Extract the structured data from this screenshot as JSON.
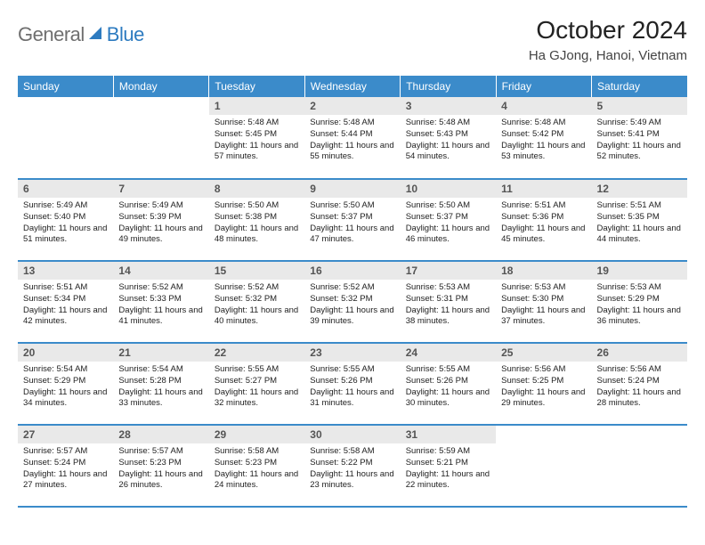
{
  "brand": {
    "part1": "General",
    "part2": "Blue"
  },
  "title": "October 2024",
  "location": "Ha GJong, Hanoi, Vietnam",
  "colors": {
    "header_bg": "#3b8bca",
    "header_fg": "#ffffff",
    "daynum_bg": "#e9e9e9",
    "row_border": "#3b8bca",
    "logo_gray": "#6f6f6f",
    "logo_blue": "#2d7bc0"
  },
  "dayNames": [
    "Sunday",
    "Monday",
    "Tuesday",
    "Wednesday",
    "Thursday",
    "Friday",
    "Saturday"
  ],
  "weeks": [
    [
      null,
      null,
      {
        "n": "1",
        "sr": "5:48 AM",
        "ss": "5:45 PM",
        "dl": "11 hours and 57 minutes."
      },
      {
        "n": "2",
        "sr": "5:48 AM",
        "ss": "5:44 PM",
        "dl": "11 hours and 55 minutes."
      },
      {
        "n": "3",
        "sr": "5:48 AM",
        "ss": "5:43 PM",
        "dl": "11 hours and 54 minutes."
      },
      {
        "n": "4",
        "sr": "5:48 AM",
        "ss": "5:42 PM",
        "dl": "11 hours and 53 minutes."
      },
      {
        "n": "5",
        "sr": "5:49 AM",
        "ss": "5:41 PM",
        "dl": "11 hours and 52 minutes."
      }
    ],
    [
      {
        "n": "6",
        "sr": "5:49 AM",
        "ss": "5:40 PM",
        "dl": "11 hours and 51 minutes."
      },
      {
        "n": "7",
        "sr": "5:49 AM",
        "ss": "5:39 PM",
        "dl": "11 hours and 49 minutes."
      },
      {
        "n": "8",
        "sr": "5:50 AM",
        "ss": "5:38 PM",
        "dl": "11 hours and 48 minutes."
      },
      {
        "n": "9",
        "sr": "5:50 AM",
        "ss": "5:37 PM",
        "dl": "11 hours and 47 minutes."
      },
      {
        "n": "10",
        "sr": "5:50 AM",
        "ss": "5:37 PM",
        "dl": "11 hours and 46 minutes."
      },
      {
        "n": "11",
        "sr": "5:51 AM",
        "ss": "5:36 PM",
        "dl": "11 hours and 45 minutes."
      },
      {
        "n": "12",
        "sr": "5:51 AM",
        "ss": "5:35 PM",
        "dl": "11 hours and 44 minutes."
      }
    ],
    [
      {
        "n": "13",
        "sr": "5:51 AM",
        "ss": "5:34 PM",
        "dl": "11 hours and 42 minutes."
      },
      {
        "n": "14",
        "sr": "5:52 AM",
        "ss": "5:33 PM",
        "dl": "11 hours and 41 minutes."
      },
      {
        "n": "15",
        "sr": "5:52 AM",
        "ss": "5:32 PM",
        "dl": "11 hours and 40 minutes."
      },
      {
        "n": "16",
        "sr": "5:52 AM",
        "ss": "5:32 PM",
        "dl": "11 hours and 39 minutes."
      },
      {
        "n": "17",
        "sr": "5:53 AM",
        "ss": "5:31 PM",
        "dl": "11 hours and 38 minutes."
      },
      {
        "n": "18",
        "sr": "5:53 AM",
        "ss": "5:30 PM",
        "dl": "11 hours and 37 minutes."
      },
      {
        "n": "19",
        "sr": "5:53 AM",
        "ss": "5:29 PM",
        "dl": "11 hours and 36 minutes."
      }
    ],
    [
      {
        "n": "20",
        "sr": "5:54 AM",
        "ss": "5:29 PM",
        "dl": "11 hours and 34 minutes."
      },
      {
        "n": "21",
        "sr": "5:54 AM",
        "ss": "5:28 PM",
        "dl": "11 hours and 33 minutes."
      },
      {
        "n": "22",
        "sr": "5:55 AM",
        "ss": "5:27 PM",
        "dl": "11 hours and 32 minutes."
      },
      {
        "n": "23",
        "sr": "5:55 AM",
        "ss": "5:26 PM",
        "dl": "11 hours and 31 minutes."
      },
      {
        "n": "24",
        "sr": "5:55 AM",
        "ss": "5:26 PM",
        "dl": "11 hours and 30 minutes."
      },
      {
        "n": "25",
        "sr": "5:56 AM",
        "ss": "5:25 PM",
        "dl": "11 hours and 29 minutes."
      },
      {
        "n": "26",
        "sr": "5:56 AM",
        "ss": "5:24 PM",
        "dl": "11 hours and 28 minutes."
      }
    ],
    [
      {
        "n": "27",
        "sr": "5:57 AM",
        "ss": "5:24 PM",
        "dl": "11 hours and 27 minutes."
      },
      {
        "n": "28",
        "sr": "5:57 AM",
        "ss": "5:23 PM",
        "dl": "11 hours and 26 minutes."
      },
      {
        "n": "29",
        "sr": "5:58 AM",
        "ss": "5:23 PM",
        "dl": "11 hours and 24 minutes."
      },
      {
        "n": "30",
        "sr": "5:58 AM",
        "ss": "5:22 PM",
        "dl": "11 hours and 23 minutes."
      },
      {
        "n": "31",
        "sr": "5:59 AM",
        "ss": "5:21 PM",
        "dl": "11 hours and 22 minutes."
      },
      null,
      null
    ]
  ],
  "labels": {
    "sunrise": "Sunrise:",
    "sunset": "Sunset:",
    "daylight": "Daylight:"
  }
}
